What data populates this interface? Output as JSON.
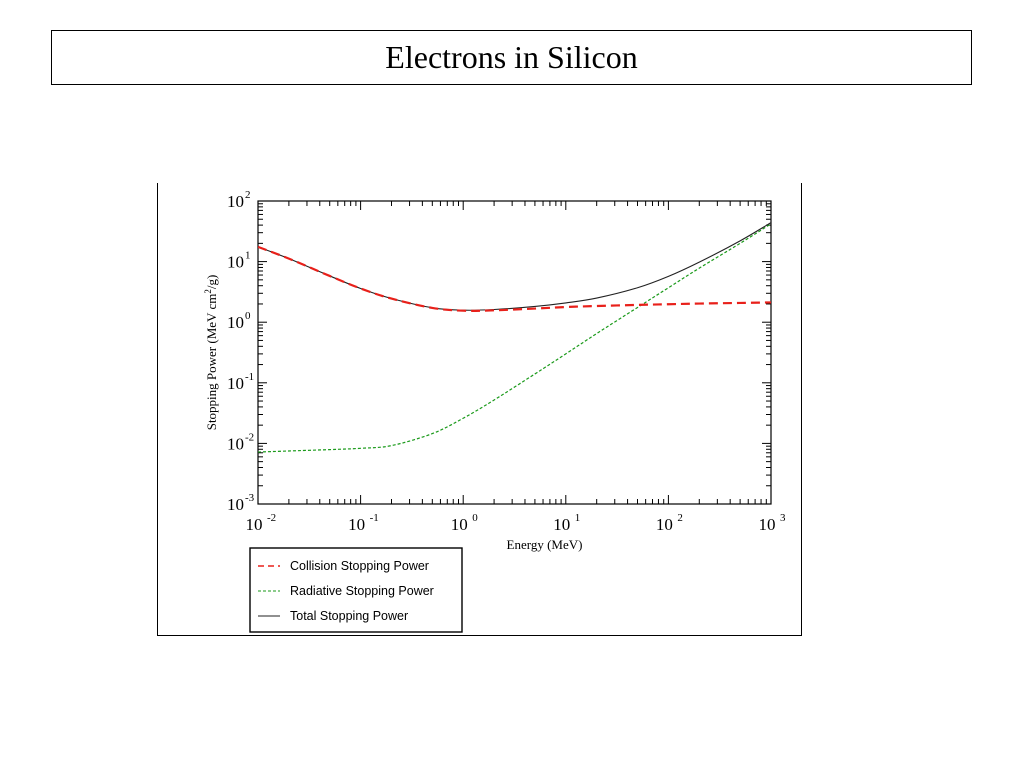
{
  "slide": {
    "title": "Electrons in Silicon"
  },
  "chart_data": {
    "type": "line",
    "title": "",
    "xlabel": "Energy (MeV)",
    "ylabel": "Stopping Power (MeV cm²/g)",
    "ylabel_parts": {
      "before": "Stopping Power (MeV cm",
      "sup": "2",
      "after": "/g)"
    },
    "x_scale": "log",
    "y_scale": "log",
    "xlim": [
      0.01,
      1000
    ],
    "ylim": [
      0.001,
      100
    ],
    "x_ticks": [
      {
        "value": 0.01,
        "base": "10",
        "exp": "-2"
      },
      {
        "value": 0.1,
        "base": "10",
        "exp": "-1"
      },
      {
        "value": 1,
        "base": "10",
        "exp": "0"
      },
      {
        "value": 10,
        "base": "10",
        "exp": "1"
      },
      {
        "value": 100,
        "base": "10",
        "exp": "2"
      },
      {
        "value": 1000,
        "base": "10",
        "exp": "3"
      }
    ],
    "y_ticks": [
      {
        "value": 0.001,
        "base": "10",
        "exp": "-3"
      },
      {
        "value": 0.01,
        "base": "10",
        "exp": "-2"
      },
      {
        "value": 0.1,
        "base": "10",
        "exp": "-1"
      },
      {
        "value": 1,
        "base": "10",
        "exp": "0"
      },
      {
        "value": 10,
        "base": "10",
        "exp": "1"
      },
      {
        "value": 100,
        "base": "10",
        "exp": "2"
      }
    ],
    "grid": false,
    "legend_position": "bottom-left",
    "series": [
      {
        "name": "Collision Stopping Power",
        "color": "#e8201a",
        "style": "dashed",
        "x": [
          0.01,
          0.02,
          0.05,
          0.1,
          0.2,
          0.5,
          1,
          2,
          5,
          10,
          20,
          50,
          100,
          200,
          500,
          1000
        ],
        "y": [
          17.5,
          11.2,
          5.8,
          3.6,
          2.45,
          1.72,
          1.55,
          1.57,
          1.68,
          1.78,
          1.85,
          1.93,
          1.98,
          2.03,
          2.08,
          2.12
        ]
      },
      {
        "name": "Radiative Stopping Power",
        "color": "#1a9a1a",
        "style": "dotted",
        "x": [
          0.01,
          0.02,
          0.05,
          0.1,
          0.2,
          0.5,
          1,
          2,
          5,
          10,
          20,
          50,
          100,
          200,
          500,
          1000
        ],
        "y": [
          0.0072,
          0.0075,
          0.0079,
          0.0083,
          0.0092,
          0.0145,
          0.026,
          0.052,
          0.14,
          0.3,
          0.65,
          1.75,
          3.7,
          7.8,
          20,
          42
        ]
      },
      {
        "name": "Total Stopping Power",
        "color": "#222222",
        "style": "solid",
        "x": [
          0.01,
          0.02,
          0.05,
          0.1,
          0.2,
          0.5,
          1,
          2,
          5,
          10,
          20,
          50,
          100,
          200,
          500,
          1000
        ],
        "y": [
          17.5,
          11.2,
          5.8,
          3.6,
          2.46,
          1.73,
          1.58,
          1.62,
          1.82,
          2.08,
          2.5,
          3.7,
          5.7,
          9.8,
          22,
          44
        ]
      }
    ]
  }
}
